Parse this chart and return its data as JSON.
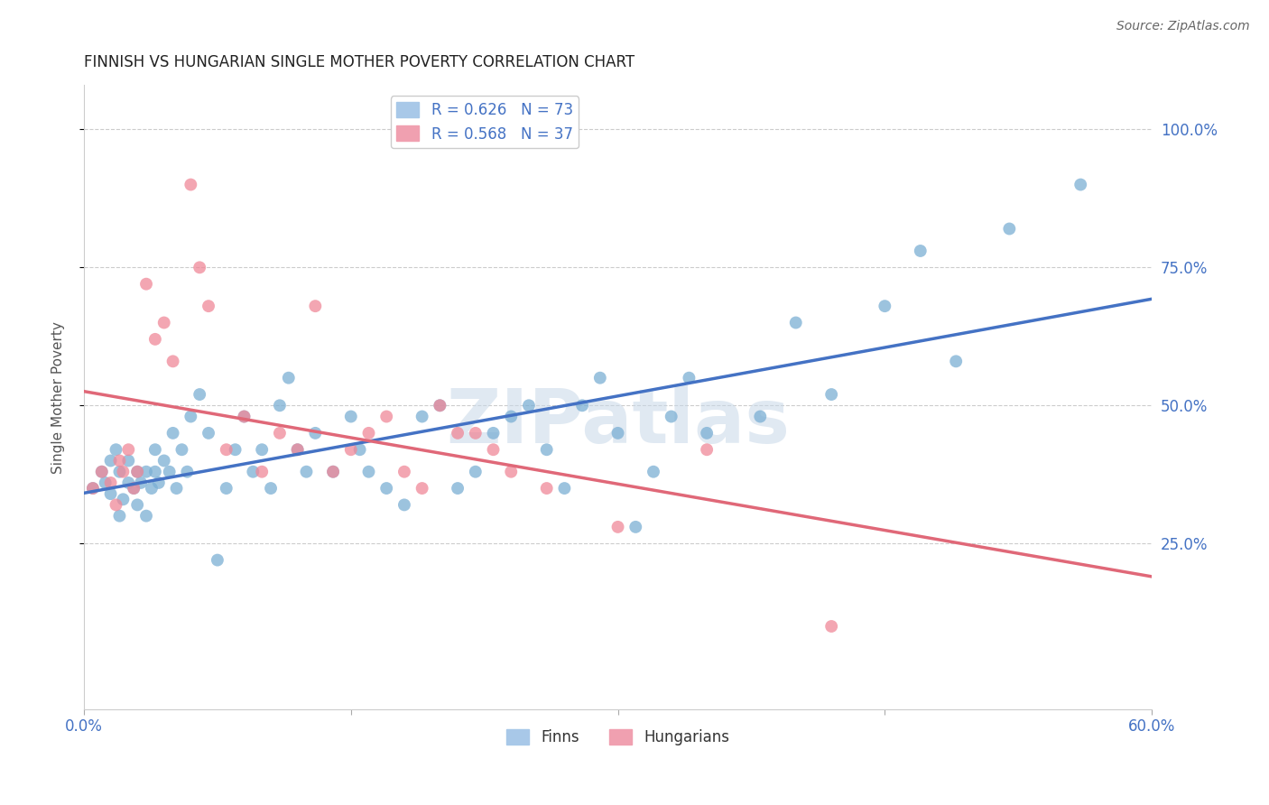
{
  "title": "FINNISH VS HUNGARIAN SINGLE MOTHER POVERTY CORRELATION CHART",
  "source": "Source: ZipAtlas.com",
  "ylabel_label": "Single Mother Poverty",
  "xlim": [
    0.0,
    0.6
  ],
  "ylim": [
    -0.05,
    1.08
  ],
  "x_ticks": [
    0.0,
    0.15,
    0.3,
    0.45,
    0.6
  ],
  "x_tick_labels": [
    "0.0%",
    "",
    "",
    "",
    "60.0%"
  ],
  "y_ticks": [
    0.25,
    0.5,
    0.75,
    1.0
  ],
  "y_tick_labels": [
    "25.0%",
    "50.0%",
    "75.0%",
    "100.0%"
  ],
  "finns_color": "#7bafd4",
  "hungarians_color": "#f08898",
  "finns_line_color": "#4472c4",
  "hungarians_line_color": "#e06878",
  "background_color": "#ffffff",
  "watermark": "ZIPatlas",
  "finns_x": [
    0.005,
    0.01,
    0.012,
    0.015,
    0.015,
    0.018,
    0.02,
    0.02,
    0.022,
    0.025,
    0.025,
    0.028,
    0.03,
    0.03,
    0.032,
    0.035,
    0.035,
    0.038,
    0.04,
    0.04,
    0.042,
    0.045,
    0.048,
    0.05,
    0.052,
    0.055,
    0.058,
    0.06,
    0.065,
    0.07,
    0.075,
    0.08,
    0.085,
    0.09,
    0.095,
    0.1,
    0.105,
    0.11,
    0.115,
    0.12,
    0.125,
    0.13,
    0.14,
    0.15,
    0.155,
    0.16,
    0.17,
    0.18,
    0.19,
    0.2,
    0.21,
    0.22,
    0.23,
    0.24,
    0.25,
    0.26,
    0.27,
    0.28,
    0.29,
    0.3,
    0.31,
    0.32,
    0.33,
    0.34,
    0.35,
    0.38,
    0.4,
    0.42,
    0.45,
    0.47,
    0.49,
    0.52,
    0.56
  ],
  "finns_y": [
    0.35,
    0.38,
    0.36,
    0.34,
    0.4,
    0.42,
    0.3,
    0.38,
    0.33,
    0.36,
    0.4,
    0.35,
    0.32,
    0.38,
    0.36,
    0.3,
    0.38,
    0.35,
    0.38,
    0.42,
    0.36,
    0.4,
    0.38,
    0.45,
    0.35,
    0.42,
    0.38,
    0.48,
    0.52,
    0.45,
    0.22,
    0.35,
    0.42,
    0.48,
    0.38,
    0.42,
    0.35,
    0.5,
    0.55,
    0.42,
    0.38,
    0.45,
    0.38,
    0.48,
    0.42,
    0.38,
    0.35,
    0.32,
    0.48,
    0.5,
    0.35,
    0.38,
    0.45,
    0.48,
    0.5,
    0.42,
    0.35,
    0.5,
    0.55,
    0.45,
    0.28,
    0.38,
    0.48,
    0.55,
    0.45,
    0.48,
    0.65,
    0.52,
    0.68,
    0.78,
    0.58,
    0.82,
    0.9
  ],
  "hungarians_x": [
    0.005,
    0.01,
    0.015,
    0.018,
    0.02,
    0.022,
    0.025,
    0.028,
    0.03,
    0.035,
    0.04,
    0.045,
    0.05,
    0.06,
    0.065,
    0.07,
    0.08,
    0.09,
    0.1,
    0.11,
    0.12,
    0.13,
    0.14,
    0.15,
    0.16,
    0.17,
    0.18,
    0.19,
    0.2,
    0.21,
    0.22,
    0.23,
    0.24,
    0.26,
    0.3,
    0.35,
    0.42
  ],
  "hungarians_y": [
    0.35,
    0.38,
    0.36,
    0.32,
    0.4,
    0.38,
    0.42,
    0.35,
    0.38,
    0.72,
    0.62,
    0.65,
    0.58,
    0.9,
    0.75,
    0.68,
    0.42,
    0.48,
    0.38,
    0.45,
    0.42,
    0.68,
    0.38,
    0.42,
    0.45,
    0.48,
    0.38,
    0.35,
    0.5,
    0.45,
    0.45,
    0.42,
    0.38,
    0.35,
    0.28,
    0.42,
    0.1
  ]
}
